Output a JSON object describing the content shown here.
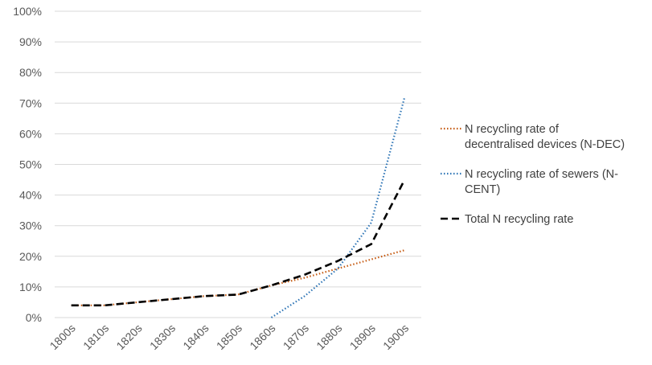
{
  "chart_data": {
    "type": "line",
    "title": "",
    "xlabel": "",
    "ylabel": "",
    "categories": [
      "1800s",
      "1810s",
      "1820s",
      "1830s",
      "1840s",
      "1850s",
      "1860s",
      "1870s",
      "1880s",
      "1890s",
      "1900s"
    ],
    "ylim": [
      0,
      100
    ],
    "y_ticks": [
      "0%",
      "10%",
      "20%",
      "30%",
      "40%",
      "50%",
      "60%",
      "70%",
      "80%",
      "90%",
      "100%"
    ],
    "grid": true,
    "legend_position": "right",
    "series": [
      {
        "name": "N recycling rate of decentralised devices (N-DEC)",
        "name_lines": [
          "N recycling rate of",
          "decentralised devices (N-DEC)"
        ],
        "style": "dotted",
        "color": "#c55a11",
        "values": [
          4,
          4,
          5,
          6,
          7,
          7.5,
          10.5,
          13,
          16,
          19,
          22
        ]
      },
      {
        "name": "N recycling rate of sewers (N-CENT)",
        "name_lines": [
          "N recycling rate of sewers (N-",
          "CENT)"
        ],
        "style": "dotted",
        "color": "#2e75b6",
        "values": [
          null,
          null,
          null,
          null,
          null,
          null,
          0,
          7,
          16,
          31,
          72
        ]
      },
      {
        "name": "Total N recycling rate",
        "name_lines": [
          "Total N recycling rate"
        ],
        "style": "dashed",
        "color": "#000000",
        "values": [
          4,
          4,
          5,
          6,
          7,
          7.5,
          10.5,
          14,
          18.5,
          24,
          45
        ]
      }
    ]
  }
}
